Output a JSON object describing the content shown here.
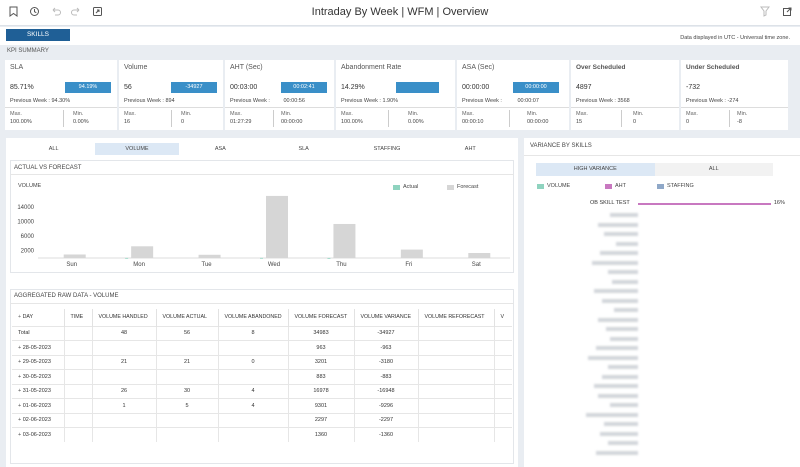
{
  "header": {
    "title": "Intraday By Week | WFM | Overview",
    "left_icons": [
      "bookmark-icon",
      "history-icon",
      "undo-icon",
      "redo-icon",
      "share-icon"
    ],
    "right_icons": [
      "filter-icon",
      "export-icon"
    ]
  },
  "toolbar": {
    "skills_label": "SKILLS",
    "timezone_note": "Data displayed in UTC - Universal time zone."
  },
  "kpi_summary": {
    "title": "KPI SUMMARY",
    "cards": [
      {
        "name": "SLA",
        "value": "85.71%",
        "bar_label": "94.19%",
        "previous": "Previous Week : 94.30%",
        "max_label": "Max.",
        "max": "100.00%",
        "min_label": "Min.",
        "min": "0.00%"
      },
      {
        "name": "Volume",
        "value": "56",
        "bar_label": "-34927",
        "previous": "Previous Week : 894",
        "max_label": "Max.",
        "max": "16",
        "min_label": "Min.",
        "min": "0"
      },
      {
        "name": "AHT (Sec)",
        "value": "00:03:00",
        "bar_label": "00:02:41",
        "previous": "Previous Week :",
        "previous_value": "00:00:56",
        "max_label": "Max.",
        "max": "01:27:29",
        "min_label": "Min.",
        "min": "00:00:00"
      },
      {
        "name": "Abandonment Rate",
        "value": "14.29%",
        "bar_label": "",
        "previous": "Previous Week : 1.90%",
        "max_label": "Max.",
        "max": "100.00%",
        "min_label": "Min.",
        "min": "0.00%"
      },
      {
        "name": "ASA (Sec)",
        "value": "00:00:00",
        "bar_label": "00:00:00",
        "previous": "Previous Week :",
        "previous_value": "00:00:07",
        "max_label": "Max.",
        "max": "00:00:10",
        "min_label": "Min.",
        "min": "00:00:00"
      },
      {
        "name": "Over Scheduled",
        "value": "4897",
        "bar_label": "",
        "previous": "Previous Week : 3568",
        "max_label": "Max.",
        "max": "15",
        "min_label": "Min.",
        "min": "0"
      },
      {
        "name": "Under Scheduled",
        "value": "-732",
        "bar_label": "",
        "previous": "Previous Week : -274",
        "max_label": "Max.",
        "max": "0",
        "min_label": "Min.",
        "min": "-8"
      }
    ]
  },
  "metric_tabs": [
    {
      "label": "ALL",
      "active": false
    },
    {
      "label": "VOLUME",
      "active": true
    },
    {
      "label": "ASA",
      "active": false
    },
    {
      "label": "SLA",
      "active": false
    },
    {
      "label": "STAFFING",
      "active": false
    },
    {
      "label": "AHT",
      "active": false
    }
  ],
  "actual_vs_forecast": {
    "section_title": "ACTUAL VS FORECAST",
    "legend": [
      {
        "name": "Actual",
        "color": "#8fd3bf"
      },
      {
        "name": "Forecast",
        "color": "#d6d6d6"
      }
    ]
  },
  "chart_data": {
    "type": "bar",
    "title": "",
    "ylabel": "VOLUME",
    "xlabel": "",
    "categories": [
      "Sun",
      "Mon",
      "Tue",
      "Wed",
      "Thu",
      "Fri",
      "Sat"
    ],
    "yticks": [
      2000,
      6000,
      10000,
      14000
    ],
    "ylim": [
      0,
      17500
    ],
    "grid": false,
    "legend_position": "top-right",
    "series": [
      {
        "name": "Actual",
        "color": "#8fd3bf",
        "values": [
          0,
          21,
          0,
          30,
          5,
          0,
          0
        ]
      },
      {
        "name": "Forecast",
        "color": "#d6d6d6",
        "values": [
          963,
          3201,
          883,
          16978,
          9301,
          2297,
          1360
        ]
      }
    ]
  },
  "raw_data": {
    "section_title": "AGGREGATED RAW DATA - VOLUME",
    "columns": [
      "DAY",
      "TIME",
      "VOLUME HANDLED",
      "VOLUME ACTUAL",
      "VOLUME ABANDONED",
      "VOLUME FORECAST",
      "VOLUME VARIANCE",
      "VOLUME REFORECAST",
      "V"
    ],
    "rows": [
      {
        "day": "Total",
        "expandable": false,
        "time": "",
        "handled": "48",
        "actual": "56",
        "abandoned": "8",
        "forecast": "34983",
        "variance": "-34927",
        "reforecast": ""
      },
      {
        "day": "28-05-2023",
        "expandable": true,
        "time": "",
        "handled": "",
        "actual": "",
        "abandoned": "",
        "forecast": "963",
        "variance": "-963",
        "reforecast": ""
      },
      {
        "day": "29-05-2023",
        "expandable": true,
        "time": "",
        "handled": "21",
        "actual": "21",
        "abandoned": "0",
        "forecast": "3201",
        "variance": "-3180",
        "reforecast": ""
      },
      {
        "day": "30-05-2023",
        "expandable": true,
        "time": "",
        "handled": "",
        "actual": "",
        "abandoned": "",
        "forecast": "883",
        "variance": "-883",
        "reforecast": ""
      },
      {
        "day": "31-05-2023",
        "expandable": true,
        "time": "",
        "handled": "26",
        "actual": "30",
        "abandoned": "4",
        "forecast": "16978",
        "variance": "-16948",
        "reforecast": ""
      },
      {
        "day": "01-06-2023",
        "expandable": true,
        "time": "",
        "handled": "1",
        "actual": "5",
        "abandoned": "4",
        "forecast": "9301",
        "variance": "-9296",
        "reforecast": ""
      },
      {
        "day": "02-06-2023",
        "expandable": true,
        "time": "",
        "handled": "",
        "actual": "",
        "abandoned": "",
        "forecast": "2297",
        "variance": "-2297",
        "reforecast": ""
      },
      {
        "day": "03-06-2023",
        "expandable": true,
        "time": "",
        "handled": "",
        "actual": "",
        "abandoned": "",
        "forecast": "1360",
        "variance": "-1360",
        "reforecast": ""
      }
    ]
  },
  "variance_by_skills": {
    "section_title": "VARIANCE BY SKILLS",
    "tabs": [
      {
        "label": "HIGH VARIANCE",
        "active": true
      },
      {
        "label": "ALL",
        "active": false
      }
    ],
    "legend": [
      {
        "name": "VOLUME",
        "color": "#8fd3bf"
      },
      {
        "name": "AHT",
        "color": "#c878c0"
      },
      {
        "name": "STAFFING",
        "color": "#8fa8c8"
      }
    ],
    "top_skill": {
      "name": "OB SKILL TEST",
      "value": "16%",
      "fraction": 0.16,
      "color": "#c878c0"
    },
    "blurred_count": 26
  }
}
